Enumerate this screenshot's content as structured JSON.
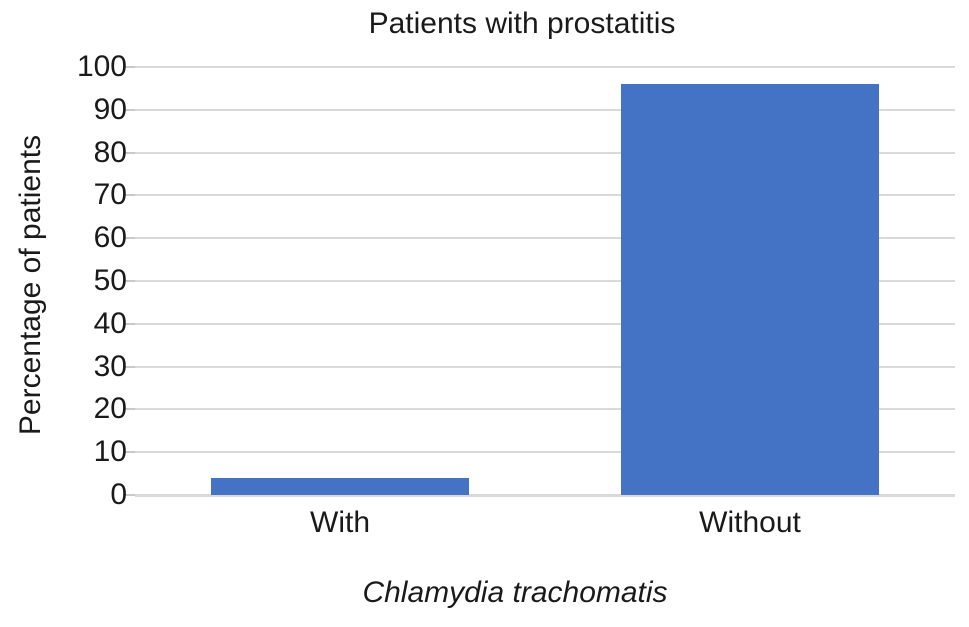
{
  "chart_data": {
    "type": "bar",
    "title": "Patients with prostatitis",
    "categories": [
      "With",
      "Without"
    ],
    "values": [
      4,
      96
    ],
    "xlabel": "Chlamydia trachomatis",
    "ylabel": "Percentage of patients",
    "ylim": [
      0,
      100
    ],
    "ytick_step": 10,
    "ytick_labels": [
      "0",
      "10",
      "20",
      "30",
      "40",
      "50",
      "60",
      "70",
      "80",
      "90",
      "100"
    ],
    "bar_color": "#4472C4",
    "gridline_color": "#D9D9D9",
    "tick_color": "#C9C9C9",
    "grid": "horizontal",
    "legend_position": "none",
    "xlabel_style": "italic",
    "background_color": "#FFFFFF"
  }
}
